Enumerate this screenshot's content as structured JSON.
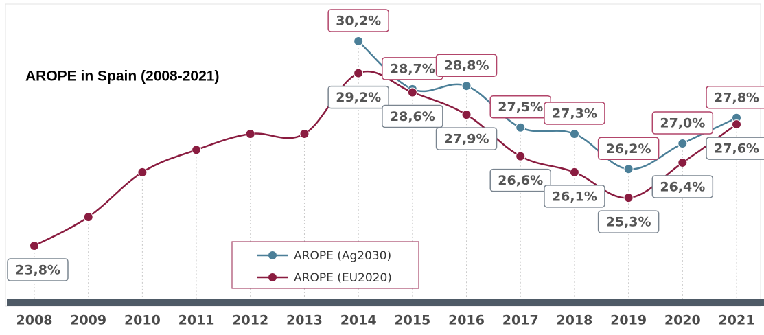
{
  "chart_data": {
    "type": "line",
    "title": "AROPE in Spain (2008-2021)",
    "categories": [
      "2008",
      "2009",
      "2010",
      "2011",
      "2012",
      "2013",
      "2014",
      "2015",
      "2016",
      "2017",
      "2018",
      "2019",
      "2020",
      "2021"
    ],
    "series": [
      {
        "name": "AROPE (Ag2030)",
        "color": "#4b7f98",
        "label_border": "#b2456a",
        "values": [
          null,
          null,
          null,
          null,
          null,
          null,
          30.2,
          28.7,
          28.8,
          27.5,
          27.3,
          26.2,
          27.0,
          27.8
        ],
        "value_labels": [
          null,
          null,
          null,
          null,
          null,
          null,
          "30,2%",
          "28,7%",
          "28,8%",
          "27,5%",
          "27,3%",
          "26,2%",
          "27,0%",
          "27,8%"
        ]
      },
      {
        "name": "AROPE (EU2020)",
        "color": "#8a1c40",
        "label_border": "#7a8590",
        "values": [
          23.8,
          24.7,
          26.1,
          26.8,
          27.3,
          27.3,
          29.2,
          28.6,
          27.9,
          26.6,
          26.1,
          25.3,
          26.4,
          27.6
        ],
        "value_labels": [
          "23,8%",
          null,
          null,
          null,
          null,
          null,
          "29,2%",
          "28,6%",
          "27,9%",
          "26,6%",
          "26,1%",
          "25,3%",
          "26,4%",
          "27,6%"
        ]
      }
    ]
  }
}
